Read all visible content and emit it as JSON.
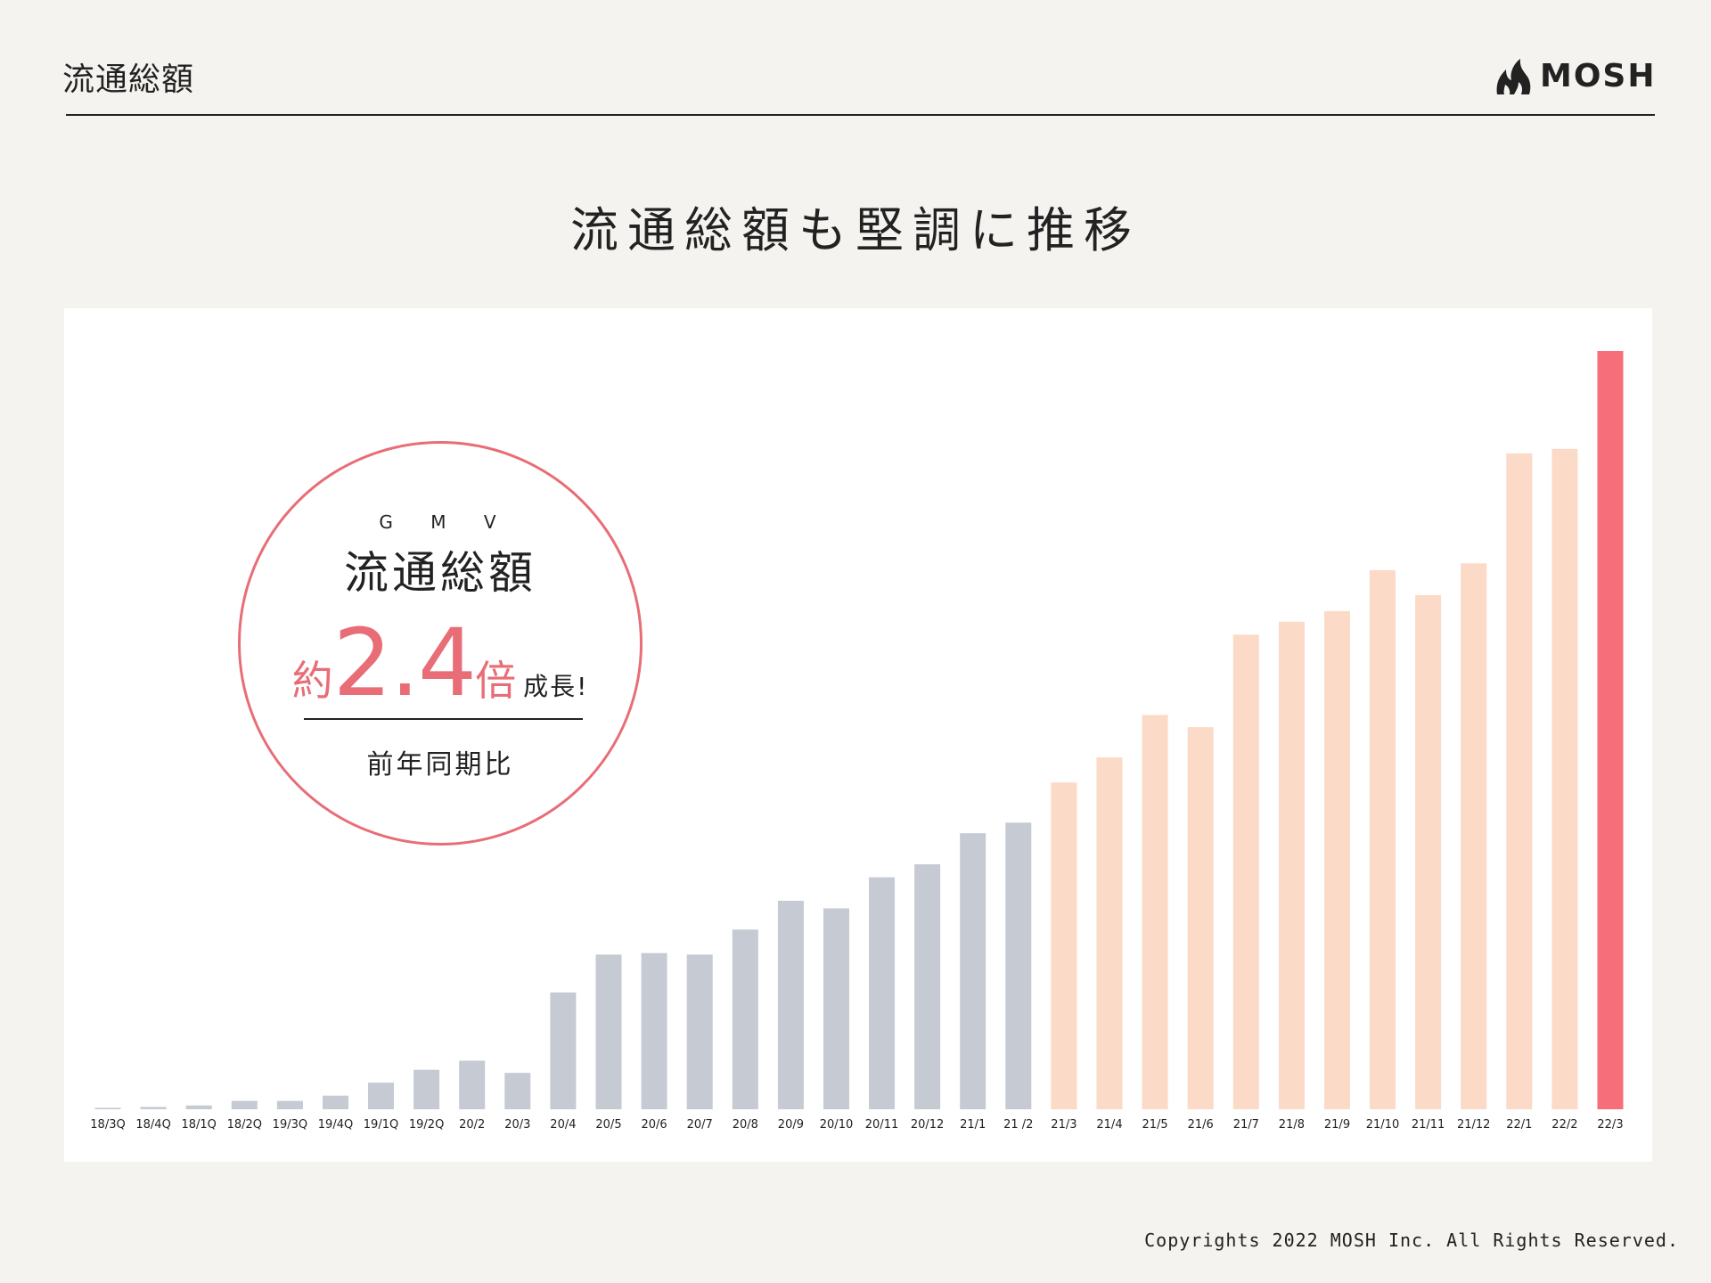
{
  "header": {
    "page_title": "流通総額",
    "logo_text": "MOSH"
  },
  "headline": "流通総額も堅調に推移",
  "badge": {
    "subtitle": "G M V",
    "title": "流通総額",
    "prefix": "約",
    "value": "2.4",
    "unit": "倍",
    "suffix": "成長!",
    "note": "前年同期比"
  },
  "colors": {
    "past": "#c5cad3",
    "recent": "#fbdac8",
    "highlight": "#f56e7a",
    "accent": "#e86d76",
    "background": "#f4f3ef"
  },
  "chart_data": {
    "type": "bar",
    "grid": false,
    "categories": [
      "18/3Q",
      "18/4Q",
      "18/1Q",
      "18/2Q",
      "19/3Q",
      "19/4Q",
      "19/1Q",
      "19/2Q",
      "20/2",
      "20/3",
      "20/4",
      "20/5",
      "20/6",
      "20/7",
      "20/8",
      "20/9",
      "20/10",
      "20/11",
      "20/12",
      "21/1",
      "21 /2",
      "21/3",
      "21/4",
      "21/5",
      "21/6",
      "21/7",
      "21/8",
      "21/9",
      "21/10",
      "21/11",
      "21/12",
      "22/1",
      "22/2",
      "22/3"
    ],
    "values": [
      0.2,
      0.3,
      0.5,
      1.1,
      1.1,
      1.8,
      3.5,
      5.2,
      6.4,
      4.8,
      15.4,
      20.4,
      20.6,
      20.4,
      23.7,
      27.5,
      26.5,
      30.6,
      32.3,
      36.4,
      37.8,
      43.1,
      46.4,
      52.0,
      50.4,
      62.6,
      64.3,
      65.7,
      71.1,
      67.8,
      72.0,
      86.5,
      87.1,
      100.0
    ],
    "groups": [
      "past",
      "past",
      "past",
      "past",
      "past",
      "past",
      "past",
      "past",
      "past",
      "past",
      "past",
      "past",
      "past",
      "past",
      "past",
      "past",
      "past",
      "past",
      "past",
      "past",
      "past",
      "recent",
      "recent",
      "recent",
      "recent",
      "recent",
      "recent",
      "recent",
      "recent",
      "recent",
      "recent",
      "recent",
      "recent",
      "highlight"
    ],
    "ylim": [
      0,
      100
    ]
  },
  "footer": {
    "copyright": "Copyrights 2022 MOSH Inc. All Rights Reserved."
  }
}
